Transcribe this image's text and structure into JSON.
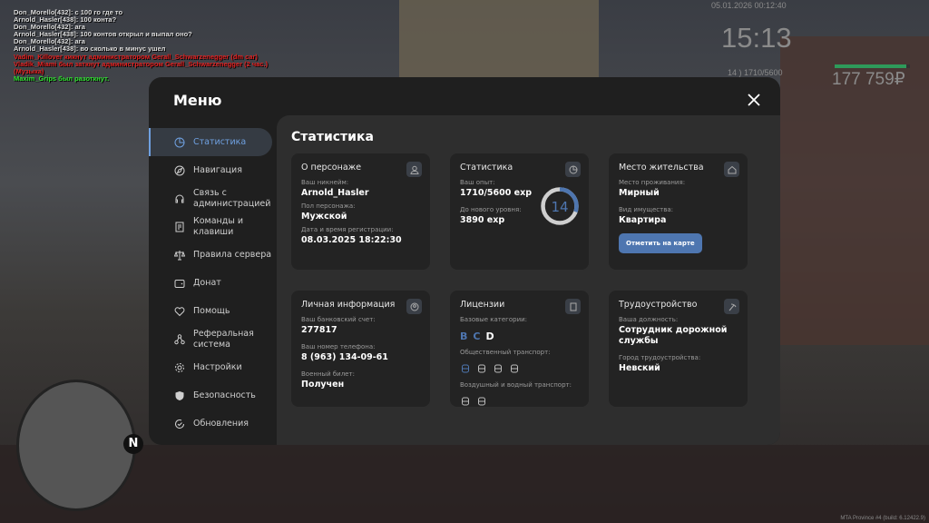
{
  "chat": [
    {
      "text": "Don_Morello[432]: с 100 го где то",
      "color": "white"
    },
    {
      "text": "Arnold_Hasler[438]: 100 конта?",
      "color": "white"
    },
    {
      "text": "Don_Morello[432]: ага",
      "color": "white"
    },
    {
      "text": "Arnold_Hasler[438]: 100 контов открыл и выпал оно?",
      "color": "white"
    },
    {
      "text": "Don_Morello[432]: ага",
      "color": "white"
    },
    {
      "text": "Arnold_Hasler[438]: во сколько в минус ушел",
      "color": "white"
    },
    {
      "text": "Vadim_Killover кикнут администратором Gerall_Schwarzenegger (dm car)",
      "color": "red"
    },
    {
      "text": "Vladik_Miami был заткнут администратором Gerall_Schwarzenegger (2 час.)",
      "color": "red"
    },
    {
      "text": "(Музыка)",
      "color": "red"
    },
    {
      "text": "Maxim_Grips был разоткнут.",
      "color": "green"
    }
  ],
  "hud": {
    "datetime": "05.01.2026 00:12:40",
    "time": "15:13",
    "level": "14",
    "exp": "1710/5600",
    "money": "177 759₽",
    "health_percent": 95,
    "health_color": "#2e9a5a",
    "build": "MTA Province #4 (build: 6.12422.9)",
    "compass": "N"
  },
  "menu": {
    "title": "Меню",
    "sidebar": [
      {
        "label": "Статистика",
        "icon": "pie-chart-icon",
        "active": true
      },
      {
        "label": "Навигация",
        "icon": "compass-icon"
      },
      {
        "label": "Связь с администрацией",
        "icon": "headset-icon"
      },
      {
        "label": "Команды и клавиши",
        "icon": "document-icon"
      },
      {
        "label": "Правила сервера",
        "icon": "scales-icon"
      },
      {
        "label": "Донат",
        "icon": "wallet-icon"
      },
      {
        "label": "Помощь",
        "icon": "heart-hands-icon"
      },
      {
        "label": "Реферальная система",
        "icon": "network-icon"
      },
      {
        "label": "Настройки",
        "icon": "gear-icon"
      },
      {
        "label": "Безопасность",
        "icon": "shield-icon"
      },
      {
        "label": "Обновления",
        "icon": "refresh-check-icon"
      }
    ],
    "accent": "#6fa0e0",
    "content_title": "Статистика",
    "character": {
      "title": "О персонаже",
      "nick_label": "Ваш никнейм:",
      "nick": "Arnold_Hasler",
      "gender_label": "Пол персонажа:",
      "gender": "Мужской",
      "reg_label": "Дата и время регистрации:",
      "reg": "08.03.2025 18:22:30"
    },
    "stats": {
      "title": "Статистика",
      "exp_label": "Ваш опыт:",
      "exp": "1710/5600 exp",
      "next_label": "До нового уровня:",
      "next": "3890 exp",
      "level": "14",
      "progress": 0.305
    },
    "residence": {
      "title": "Место жительства",
      "place_label": "Место проживания:",
      "place": "Мирный",
      "type_label": "Вид имущества:",
      "type": "Квартира",
      "button": "Отметить на карте"
    },
    "personal": {
      "title": "Личная информация",
      "bank_label": "Ваш банковский счет:",
      "bank": "277817",
      "phone_label": "Ваш номер телефона:",
      "phone": "8 (963) 134-09-61",
      "military_label": "Военный билет:",
      "military": "Получен"
    },
    "licenses": {
      "title": "Лицензии",
      "base_label": "Базовые категории:",
      "categories": [
        {
          "l": "B",
          "owned": true
        },
        {
          "l": "C",
          "owned": true
        },
        {
          "l": "D",
          "owned": false
        }
      ],
      "public_label": "Общественный транспорт:",
      "public": [
        "trolleybus-icon",
        "bus-icon",
        "train-icon",
        "tram-icon"
      ],
      "air_label": "Воздушный и водный транспорт:",
      "air": [
        "plane-icon",
        "boat-icon"
      ]
    },
    "job": {
      "title": "Трудоустройство",
      "position_label": "Ваша должность:",
      "position": "Сотрудник дорожной службы",
      "city_label": "Город трудоустройства:",
      "city": "Невский"
    }
  }
}
